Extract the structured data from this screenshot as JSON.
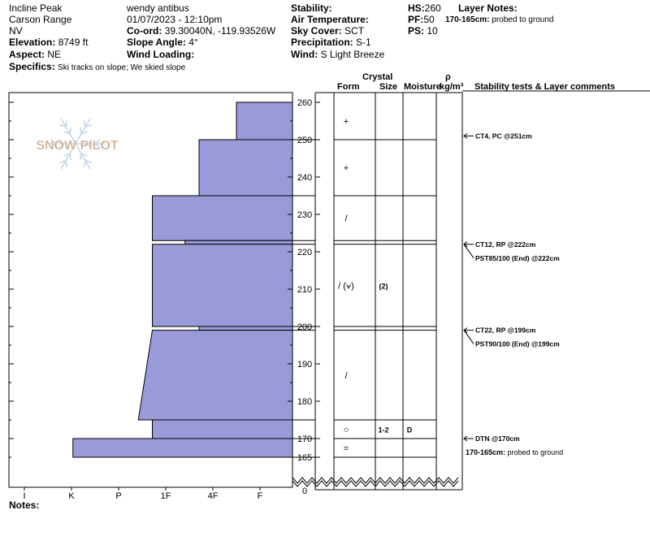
{
  "header": {
    "location": "Incline Peak",
    "range": "Carson Range",
    "state": "NV",
    "elevation_label": "Elevation:",
    "elevation": "8749 ft",
    "aspect_label": "Aspect:",
    "aspect": "NE",
    "specifics_label": "Specifics:",
    "specifics": "Ski tracks on slope; We skied slope",
    "observer": "wendy antibus",
    "datetime": "01/07/2023 - 12:10pm",
    "coord_label": "Co-ord:",
    "coord": "39.30040N, -119.93526W",
    "slope_label": "Slope Angle:",
    "slope": "4°",
    "wind_loading_label": "Wind Loading:",
    "wind_loading": "",
    "stability_label": "Stability:",
    "stability": "",
    "air_temp_label": "Air Temperature:",
    "air_temp": "",
    "sky_label": "Sky Cover:",
    "sky": "SCT",
    "precip_label": "Precipitation:",
    "precip": "S-1",
    "wind_label": "Wind:",
    "wind": "S Light Breeze",
    "hs_label": "HS:",
    "hs": "260",
    "pf_label": "PF:",
    "pf": "50",
    "ps_label": "PS:",
    "ps": "10",
    "layer_notes_label": "Layer Notes:",
    "layer_note": "170-165cm:",
    "layer_note_text": "probed to ground"
  },
  "notes_label": "Notes:",
  "logo_text": "SNOW PILOT",
  "colors": {
    "layer_fill": "#9a9ad8",
    "layer_stroke": "#000000",
    "logo": "#c9a27e"
  },
  "columns": {
    "crystal": "Crystal",
    "form": "Form",
    "size": "Size",
    "moisture": "Moisture",
    "rho": "ρ",
    "density_unit": "kg/m³",
    "comments": "Stability tests & Layer comments"
  },
  "chart_data": {
    "type": "bar",
    "orientation": "horizontal",
    "hardness_scale": [
      "I",
      "K",
      "P",
      "1F",
      "4F",
      "F"
    ],
    "height_ticks": [
      260,
      250,
      240,
      230,
      220,
      210,
      200,
      190,
      180,
      170,
      165,
      0
    ],
    "layers": [
      {
        "top": 260,
        "bottom": 250,
        "hardness": 1.2,
        "form": "+",
        "size": "",
        "moisture": ""
      },
      {
        "top": 250,
        "bottom": 235,
        "hardness": 2.0,
        "form": "+",
        "size": "",
        "moisture": ""
      },
      {
        "top": 235,
        "bottom": 223,
        "hardness": 3.0,
        "form": "/",
        "size": "",
        "moisture": ""
      },
      {
        "top": 223,
        "bottom": 222,
        "hardness": 2.3,
        "form": "",
        "size": "",
        "moisture": ""
      },
      {
        "top": 222,
        "bottom": 200,
        "hardness": 3.0,
        "form": "/ (⩝)",
        "size": "(2)",
        "moisture": ""
      },
      {
        "top": 200,
        "bottom": 199,
        "hardness": 2.0,
        "form": "",
        "size": "",
        "moisture": ""
      },
      {
        "top": 199,
        "bottom": 175,
        "hardness_top": 3.0,
        "hardness_bottom": 3.3,
        "form": "/",
        "size": "",
        "moisture": ""
      },
      {
        "top": 175,
        "bottom": 170,
        "hardness": 3.0,
        "form": "○",
        "size": "1-2",
        "moisture": "D"
      },
      {
        "top": 170,
        "bottom": 165,
        "hardness": 4.7,
        "form": "=",
        "size": "",
        "moisture": ""
      }
    ],
    "tests": [
      {
        "height": 251,
        "label": "CT4, PC @251cm"
      },
      {
        "height": 222,
        "label": "CT12, RP @222cm"
      },
      {
        "height": 222,
        "label": "PST85/100 (End) @222cm"
      },
      {
        "height": 199,
        "label": "CT22, RP @199cm"
      },
      {
        "height": 199,
        "label": "PST90/100 (End) @199cm"
      },
      {
        "height": 170,
        "label": "DTN @170cm"
      }
    ],
    "layer_comment": {
      "range": "170-165cm:",
      "text": "probed to ground"
    }
  }
}
